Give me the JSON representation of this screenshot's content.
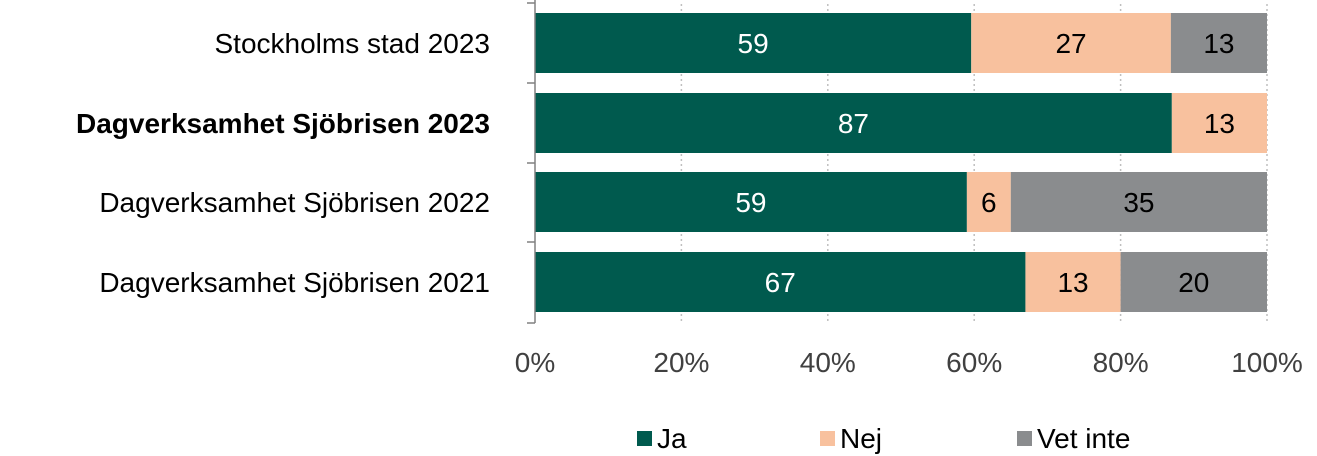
{
  "chart_data": {
    "type": "bar",
    "orientation": "horizontal",
    "stacked": true,
    "percent_stacked": true,
    "categories": [
      "Stockholms stad 2023",
      "Dagverksamhet Sjöbrisen 2023",
      "Dagverksamhet Sjöbrisen 2022",
      "Dagverksamhet Sjöbrisen 2021"
    ],
    "highlighted_category": "Dagverksamhet Sjöbrisen 2023",
    "series": [
      {
        "name": "Ja",
        "color": "#005A4E",
        "label_color": "#ffffff",
        "values": [
          59,
          87,
          59,
          67
        ],
        "labels": [
          "59",
          "87",
          "59",
          "67"
        ]
      },
      {
        "name": "Nej",
        "color": "#F8C19E",
        "label_color": "#000000",
        "values": [
          27,
          13,
          6,
          13
        ],
        "labels": [
          "27",
          "13",
          "6",
          "13"
        ]
      },
      {
        "name": "Vet inte",
        "color": "#8A8C8E",
        "label_color": "#000000",
        "values": [
          13,
          0,
          35,
          20
        ],
        "labels": [
          "13",
          "",
          "35",
          "20"
        ]
      }
    ],
    "xlim": [
      0,
      100
    ],
    "xticks": [
      "0%",
      "20%",
      "40%",
      "60%",
      "80%",
      "100%"
    ],
    "grid": "vertical-dotted",
    "legend_position": "bottom"
  }
}
